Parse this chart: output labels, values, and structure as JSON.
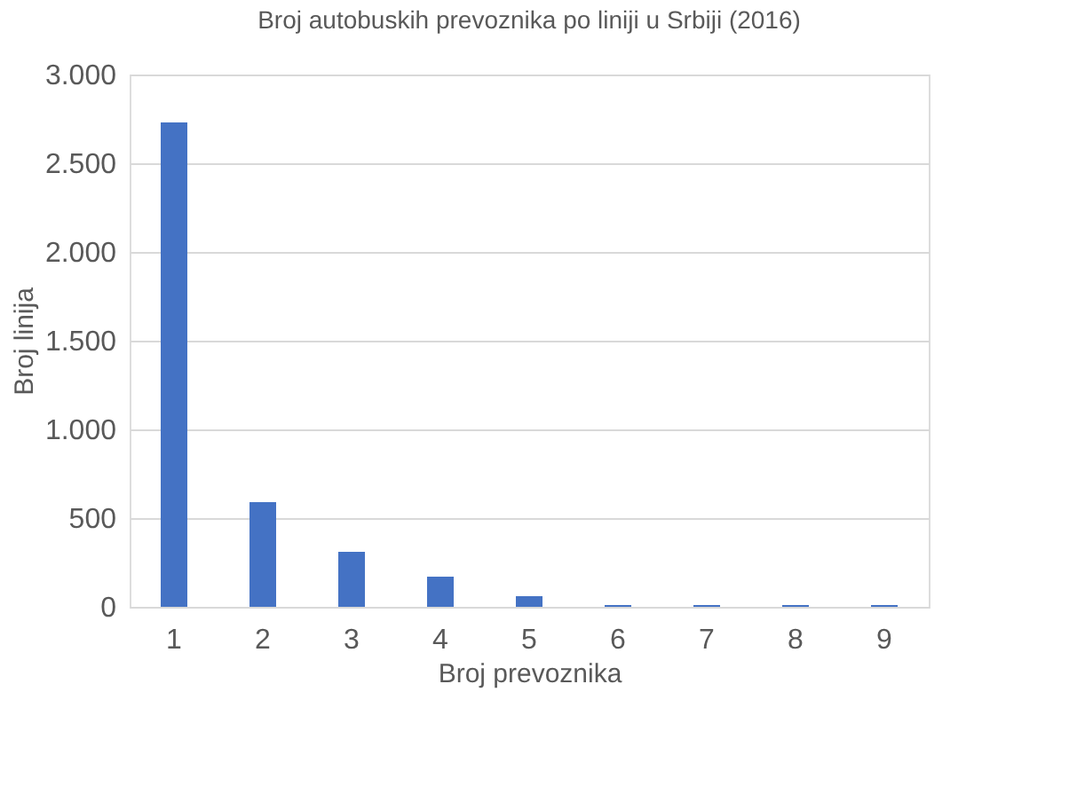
{
  "chart_data": {
    "type": "bar",
    "title": "Broj autobuskih prevoznika po liniji u Srbiji (2016)",
    "xlabel": "Broj prevoznika",
    "ylabel": "Broj linija",
    "categories": [
      "1",
      "2",
      "3",
      "4",
      "5",
      "6",
      "7",
      "8",
      "9"
    ],
    "values": [
      2730,
      590,
      310,
      170,
      60,
      10,
      10,
      10,
      10
    ],
    "color": "#4472c4",
    "ylim": [
      0,
      3000
    ],
    "yticks": [
      0,
      500,
      {
        "value": 1000,
        "label": "1.000"
      },
      {
        "value": 1500,
        "label": "1.500"
      },
      {
        "value": 2000,
        "label": "2.000"
      },
      {
        "value": 2500,
        "label": "2.500"
      },
      {
        "value": 3000,
        "label": "3.000"
      }
    ],
    "grid": "y"
  }
}
